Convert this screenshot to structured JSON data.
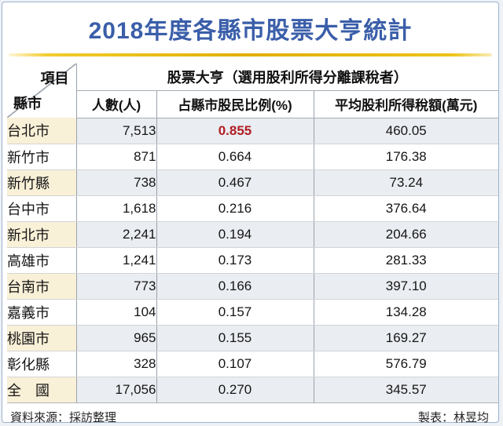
{
  "title": "2018年度各縣市股票大亨統計",
  "table": {
    "corner": {
      "top_right": "項目",
      "bottom_left": "縣市"
    },
    "group_header": "股票大亨（選用股利所得分離課稅者）",
    "columns": [
      "人數(人)",
      "占縣市股民比例(%)",
      "平均股利所得稅額(萬元)"
    ],
    "rows": [
      {
        "city": "台北市",
        "count": "7,513",
        "ratio": "0.855",
        "tax": "460.05",
        "highlight": true
      },
      {
        "city": "新竹市",
        "count": "871",
        "ratio": "0.664",
        "tax": "176.38",
        "highlight": false
      },
      {
        "city": "新竹縣",
        "count": "738",
        "ratio": "0.467",
        "tax": "73.24",
        "highlight": false
      },
      {
        "city": "台中市",
        "count": "1,618",
        "ratio": "0.216",
        "tax": "376.64",
        "highlight": false
      },
      {
        "city": "新北市",
        "count": "2,241",
        "ratio": "0.194",
        "tax": "204.66",
        "highlight": false
      },
      {
        "city": "高雄市",
        "count": "1,241",
        "ratio": "0.173",
        "tax": "281.33",
        "highlight": false
      },
      {
        "city": "台南市",
        "count": "773",
        "ratio": "0.166",
        "tax": "397.10",
        "highlight": false
      },
      {
        "city": "嘉義市",
        "count": "104",
        "ratio": "0.157",
        "tax": "134.28",
        "highlight": false
      },
      {
        "city": "桃園市",
        "count": "965",
        "ratio": "0.155",
        "tax": "169.27",
        "highlight": false
      },
      {
        "city": "彰化縣",
        "count": "328",
        "ratio": "0.107",
        "tax": "576.79",
        "highlight": false
      },
      {
        "city": "全　國",
        "count": "17,056",
        "ratio": "0.270",
        "tax": "345.57",
        "highlight": false
      }
    ]
  },
  "footer": {
    "source": "資料來源：採訪整理",
    "credit": "製表：林昱均"
  },
  "colors": {
    "title_blue": "#3a5ea9",
    "accent_gold": "#e2ae00",
    "highlight_red": "#b01e25",
    "stripe_cream": "#f9f0d8",
    "stripe_blue_gray": "#eaedf1",
    "frame_border_blue": "#9db2cf"
  },
  "chart_data": {
    "type": "table",
    "title": "2018年度各縣市股票大亨統計",
    "group_header": "股票大亨（選用股利所得分離課稅者）",
    "row_axis_labels": {
      "top_right": "項目",
      "bottom_left": "縣市"
    },
    "columns": [
      "人數(人)",
      "占縣市股民比例(%)",
      "平均股利所得稅額(萬元)"
    ],
    "rows": [
      [
        "台北市",
        7513,
        0.855,
        460.05
      ],
      [
        "新竹市",
        871,
        0.664,
        176.38
      ],
      [
        "新竹縣",
        738,
        0.467,
        73.24
      ],
      [
        "台中市",
        1618,
        0.216,
        376.64
      ],
      [
        "新北市",
        2241,
        0.194,
        204.66
      ],
      [
        "高雄市",
        1241,
        0.173,
        281.33
      ],
      [
        "台南市",
        773,
        0.166,
        397.1
      ],
      [
        "嘉義市",
        104,
        0.157,
        134.28
      ],
      [
        "桃園市",
        965,
        0.155,
        169.27
      ],
      [
        "彰化縣",
        328,
        0.107,
        576.79
      ],
      [
        "全國",
        17056,
        0.27,
        345.57
      ]
    ],
    "highlight": {
      "row": "台北市",
      "column": "占縣市股民比例(%)",
      "value": 0.855,
      "color": "#b01e25"
    },
    "source": "資料來源：採訪整理",
    "credit": "製表：林昱均"
  }
}
